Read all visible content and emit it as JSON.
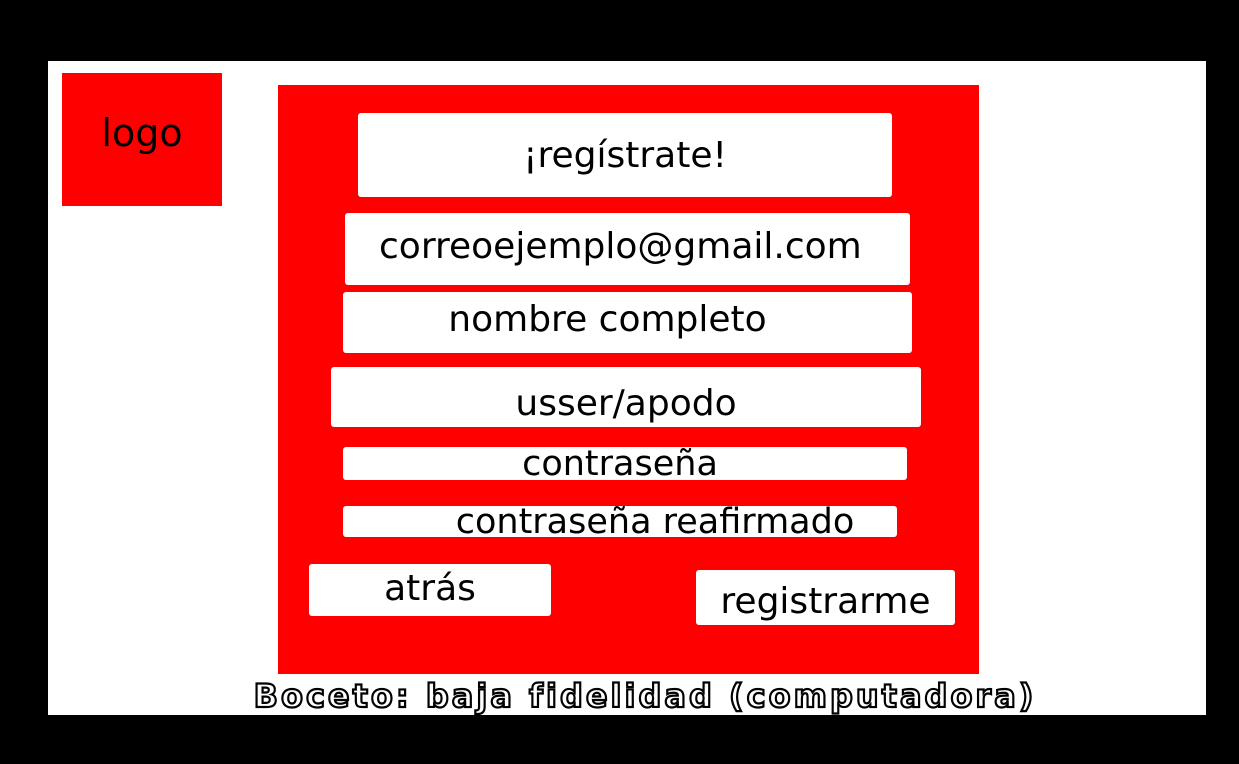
{
  "logo": {
    "label": "logo"
  },
  "form": {
    "title": "¡regístrate!",
    "email_value": "correoejemplo@gmail.com",
    "fullname_value": "nombre completo",
    "username_value": "usser/apodo",
    "password_value": "contraseña",
    "password_confirm_value": "contraseña reafirmado"
  },
  "buttons": {
    "back_label": "atrás",
    "register_label": "registrarme"
  },
  "caption": "Boceto: baja fidelidad (computadora)",
  "colors": {
    "frame": "#000000",
    "canvas": "#ffffff",
    "accent": "#ff0000",
    "field_bg": "#ffffff"
  }
}
